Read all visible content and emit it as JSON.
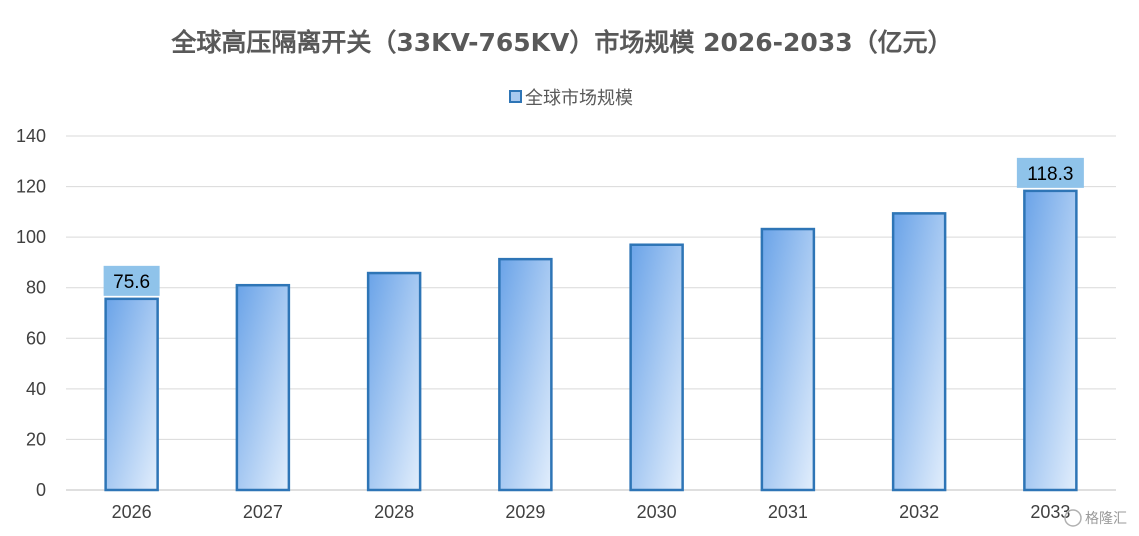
{
  "chart_data": {
    "type": "bar",
    "title": "全球高压隔离开关（33KV-765KV）市场规模 2026-2033（亿元）",
    "categories": [
      "2026",
      "2027",
      "2028",
      "2029",
      "2030",
      "2031",
      "2032",
      "2033"
    ],
    "series": [
      {
        "name": "全球市场规模",
        "values": [
          75.6,
          81.0,
          85.8,
          91.3,
          97.0,
          103.2,
          109.4,
          118.3
        ]
      }
    ],
    "data_labels": [
      {
        "index": 0,
        "text": "75.6"
      },
      {
        "index": 7,
        "text": "118.3"
      }
    ],
    "ylim": [
      0,
      140
    ],
    "yticks": [
      0,
      20,
      40,
      60,
      80,
      100,
      120,
      140
    ],
    "grid": true,
    "legend": "top-center",
    "colors": {
      "bar_top": "#6aa3e8",
      "bar_bottom": "#dbe9fb",
      "bar_border": "#2e75b6",
      "label_bg": "#8fc3ea",
      "grid": "#d9d9d9",
      "title": "#595959"
    }
  },
  "watermark": "格隆汇"
}
